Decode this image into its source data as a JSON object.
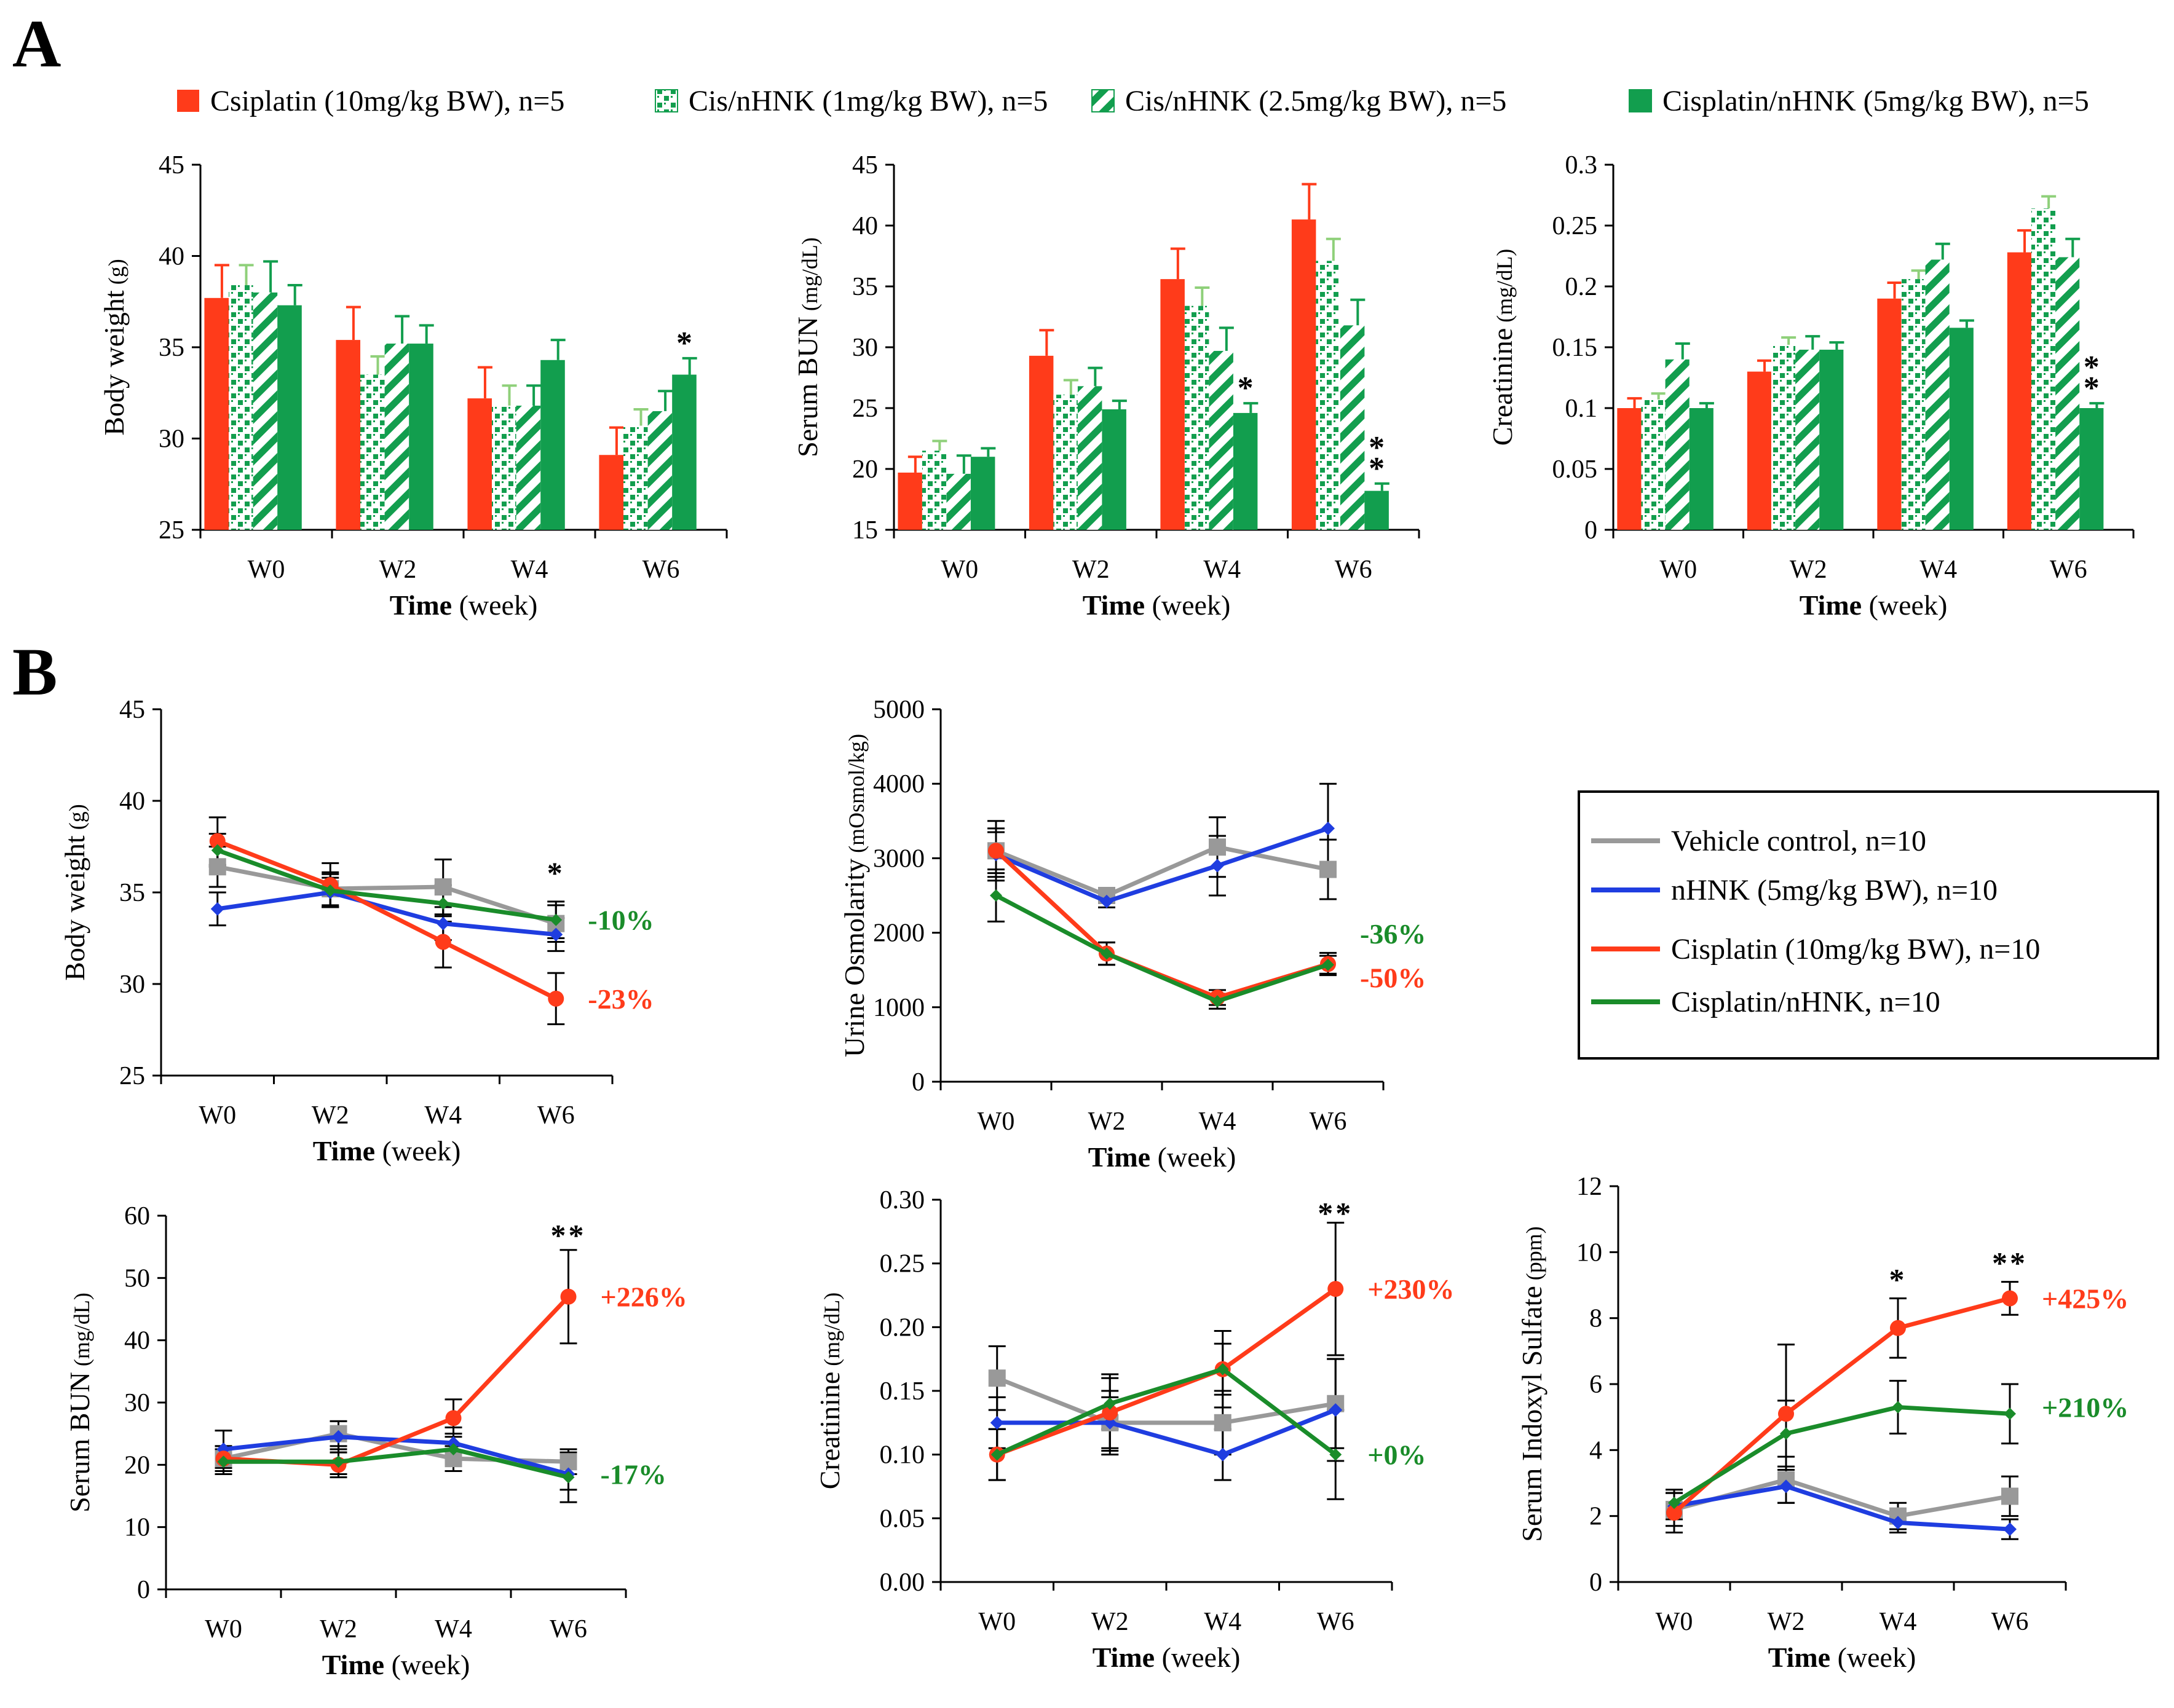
{
  "panel_labels": {
    "a": "A",
    "b": "B"
  },
  "legend_a": [
    {
      "label": "Csiplatin (10mg/kg BW), n=5",
      "pattern": "solid-red"
    },
    {
      "label": "Cis/nHNK (1mg/kg BW), n=5",
      "pattern": "dots-green"
    },
    {
      "label": "Cis/nHNK (2.5mg/kg BW), n=5",
      "pattern": "stripes-green"
    },
    {
      "label": "Cisplatin/nHNK (5mg/kg BW), n=5",
      "pattern": "solid-green"
    }
  ],
  "legend_b": [
    {
      "label": "Vehicle control, n=10",
      "color": "#999999"
    },
    {
      "label": "nHNK (5mg/kg BW), n=10",
      "color": "#1f3de0"
    },
    {
      "label": "Cisplatin (10mg/kg BW), n=10",
      "color": "#ff3b1a"
    },
    {
      "label": "Cisplatin/nHNK, n=10",
      "color": "#1a8c2a"
    }
  ],
  "colors": {
    "red": "#ff3b1a",
    "green": "#129e4e",
    "gray": "#999999",
    "blue": "#1f3de0",
    "dkgreen": "#1a8c2a"
  },
  "chart_data": [
    {
      "id": "A1",
      "type": "bar",
      "title": "",
      "xlabel_bold": "Time",
      "xlabel_rest": " (week)",
      "ylabel_main": "Body weight",
      "ylabel_unit": " (g)",
      "categories": [
        "W0",
        "W2",
        "W4",
        "W6"
      ],
      "ylim": [
        25,
        45
      ],
      "yticks": [
        "25",
        "30",
        "35",
        "40",
        "45"
      ],
      "ytick_values": [
        25,
        30,
        35,
        40,
        45
      ],
      "series": [
        {
          "name": "Csiplatin (10mg/kg BW), n=5",
          "values": [
            37.7,
            35.4,
            32.2,
            29.1
          ],
          "errors": [
            1.8,
            1.8,
            1.7,
            1.5
          ]
        },
        {
          "name": "Cis/nHNK (1mg/kg BW), n=5",
          "values": [
            38.4,
            33.5,
            31.8,
            30.7
          ],
          "errors": [
            1.1,
            1.0,
            1.1,
            0.9
          ]
        },
        {
          "name": "Cis/nHNK (2.5mg/kg BW), n=5",
          "values": [
            38.0,
            35.2,
            31.8,
            31.5
          ],
          "errors": [
            1.7,
            1.5,
            1.1,
            1.1
          ]
        },
        {
          "name": "Cisplatin/nHNK (5mg/kg BW), n=5",
          "values": [
            37.3,
            35.2,
            34.3,
            33.5
          ],
          "errors": [
            1.1,
            1.0,
            1.1,
            0.9
          ]
        }
      ],
      "annotations": [
        {
          "category": "W6",
          "series": 3,
          "text": "*"
        }
      ]
    },
    {
      "id": "A2",
      "type": "bar",
      "title": "",
      "xlabel_bold": "Time",
      "xlabel_rest": " (week)",
      "ylabel_main": "Serum BUN",
      "ylabel_unit": " (mg/dL)",
      "categories": [
        "W0",
        "W2",
        "W4",
        "W6"
      ],
      "ylim": [
        15,
        45
      ],
      "yticks": [
        "15",
        "20",
        "25",
        "30",
        "35",
        "40",
        "45"
      ],
      "ytick_values": [
        15,
        20,
        25,
        30,
        35,
        40,
        45
      ],
      "series": [
        {
          "name": "Csiplatin (10mg/kg BW), n=5",
          "values": [
            19.7,
            29.3,
            35.6,
            40.5
          ],
          "errors": [
            1.3,
            2.1,
            2.5,
            2.9
          ]
        },
        {
          "name": "Cis/nHNK (1mg/kg BW), n=5",
          "values": [
            21.5,
            26.1,
            33.4,
            37.1
          ],
          "errors": [
            0.8,
            1.2,
            1.5,
            1.8
          ]
        },
        {
          "name": "Cis/nHNK (2.5mg/kg BW), n=5",
          "values": [
            19.6,
            26.8,
            29.7,
            31.8
          ],
          "errors": [
            1.5,
            1.5,
            1.9,
            2.1
          ]
        },
        {
          "name": "Cisplatin/nHNK (5mg/kg BW), n=5",
          "values": [
            21.0,
            24.9,
            24.6,
            18.2
          ],
          "errors": [
            0.7,
            0.7,
            0.8,
            0.6
          ]
        }
      ],
      "annotations": [
        {
          "category": "W4",
          "series": 3,
          "text": "*"
        },
        {
          "category": "W6",
          "series": 3,
          "text": "**"
        }
      ]
    },
    {
      "id": "A3",
      "type": "bar",
      "title": "",
      "xlabel_bold": "Time",
      "xlabel_rest": " (week)",
      "ylabel_main": "Creatinine",
      "ylabel_unit": " (mg/dL)",
      "categories": [
        "W0",
        "W2",
        "W4",
        "W6"
      ],
      "ylim": [
        0,
        0.3
      ],
      "yticks": [
        "0",
        "0.05",
        "0.1",
        "0.15",
        "0.2",
        "0.25",
        "0.3"
      ],
      "ytick_values": [
        0,
        0.05,
        0.1,
        0.15,
        0.2,
        0.25,
        0.3
      ],
      "series": [
        {
          "name": "Csiplatin (10mg/kg BW), n=5",
          "values": [
            0.1,
            0.13,
            0.19,
            0.228
          ],
          "errors": [
            0.008,
            0.009,
            0.013,
            0.018
          ]
        },
        {
          "name": "Cis/nHNK (1mg/kg BW), n=5",
          "values": [
            0.107,
            0.152,
            0.206,
            0.264
          ],
          "errors": [
            0.005,
            0.006,
            0.007,
            0.01
          ]
        },
        {
          "name": "Cis/nHNK (2.5mg/kg BW), n=5",
          "values": [
            0.14,
            0.148,
            0.222,
            0.224
          ],
          "errors": [
            0.013,
            0.011,
            0.013,
            0.015
          ]
        },
        {
          "name": "Cisplatin/nHNK (5mg/kg BW), n=5",
          "values": [
            0.1,
            0.148,
            0.166,
            0.1
          ],
          "errors": [
            0.004,
            0.006,
            0.006,
            0.004
          ]
        }
      ],
      "annotations": [
        {
          "category": "W6",
          "series": 3,
          "text": "**"
        }
      ]
    },
    {
      "id": "B1",
      "type": "line",
      "title": "",
      "xlabel_bold": "Time",
      "xlabel_rest": " (week)",
      "ylabel_main": "Body weight",
      "ylabel_unit": " (g)",
      "x": [
        "W0",
        "W2",
        "W4",
        "W6"
      ],
      "ylim": [
        25,
        45
      ],
      "yticks": [
        "25",
        "30",
        "35",
        "40",
        "45"
      ],
      "ytick_values": [
        25,
        30,
        35,
        40,
        45
      ],
      "series": [
        {
          "name": "Vehicle control, n=10",
          "values": [
            36.4,
            35.2,
            35.3,
            33.3
          ],
          "errors": [
            1.1,
            0.9,
            1.5,
            1.0
          ],
          "marker": "square"
        },
        {
          "name": "nHNK (5mg/kg BW), n=10",
          "values": [
            34.1,
            35.0,
            33.3,
            32.7
          ],
          "errors": [
            0.9,
            0.8,
            0.9,
            0.9
          ],
          "marker": "diamond"
        },
        {
          "name": "Cisplatin (10mg/kg BW), n=10",
          "values": [
            37.8,
            35.4,
            32.3,
            29.2
          ],
          "errors": [
            1.3,
            1.2,
            1.4,
            1.4
          ],
          "marker": "circle"
        },
        {
          "name": "Cisplatin/nHNK, n=10",
          "values": [
            37.3,
            35.1,
            34.4,
            33.5
          ],
          "errors": [
            0.9,
            0.9,
            1.0,
            1.0
          ],
          "marker": "triangle"
        }
      ],
      "annotations": [
        {
          "x": "W6",
          "y": 36.1,
          "text": "*"
        }
      ],
      "side_labels": [
        {
          "text": "-10%",
          "y": 33.5,
          "color": "#1a8c2a"
        },
        {
          "text": "-23%",
          "y": 29.2,
          "color": "#ff3b1a"
        }
      ]
    },
    {
      "id": "B2",
      "type": "line",
      "title": "",
      "xlabel_bold": "Time",
      "xlabel_rest": " (week)",
      "ylabel_main": "Urine Osmolarity",
      "ylabel_unit": " (mOsmol/kg)",
      "x": [
        "W0",
        "W2",
        "W4",
        "W6"
      ],
      "ylim": [
        0,
        5000
      ],
      "yticks": [
        "0",
        "1000",
        "2000",
        "3000",
        "4000",
        "5000"
      ],
      "ytick_values": [
        0,
        1000,
        2000,
        3000,
        4000,
        5000
      ],
      "series": [
        {
          "name": "Vehicle control, n=10",
          "values": [
            3100,
            2500,
            3150,
            2850
          ],
          "errors": [
            400,
            100,
            400,
            400
          ],
          "marker": "square"
        },
        {
          "name": "nHNK (5mg/kg BW), n=10",
          "values": [
            3050,
            2420,
            2900,
            3400
          ],
          "errors": [
            300,
            80,
            400,
            600
          ],
          "marker": "diamond"
        },
        {
          "name": "Cisplatin (10mg/kg BW), n=10",
          "values": [
            3100,
            1720,
            1130,
            1580
          ],
          "errors": [
            300,
            150,
            100,
            150
          ],
          "marker": "circle"
        },
        {
          "name": "Cisplatin/nHNK, n=10",
          "values": [
            2500,
            1720,
            1080,
            1570
          ],
          "errors": [
            350,
            150,
            100,
            120
          ],
          "marker": "triangle"
        }
      ],
      "annotations": [],
      "side_labels": [
        {
          "text": "-36%",
          "y": 1990,
          "color": "#1a8c2a"
        },
        {
          "text": "-50%",
          "y": 1400,
          "color": "#ff3b1a"
        }
      ]
    },
    {
      "id": "B3",
      "type": "line",
      "title": "",
      "xlabel_bold": "Time",
      "xlabel_rest": " (week)",
      "ylabel_main": "Serum BUN",
      "ylabel_unit": " (mg/dL)",
      "x": [
        "W0",
        "W2",
        "W4",
        "W6"
      ],
      "ylim": [
        0,
        60
      ],
      "yticks": [
        "0",
        "10",
        "20",
        "30",
        "40",
        "50",
        "60"
      ],
      "ytick_values": [
        0,
        10,
        20,
        30,
        40,
        50,
        60
      ],
      "series": [
        {
          "name": "Vehicle control, n=10",
          "values": [
            21,
            25,
            21,
            20.5
          ],
          "errors": [
            2,
            2,
            2,
            2
          ],
          "marker": "square"
        },
        {
          "name": "nHNK (5mg/kg BW), n=10",
          "values": [
            22.5,
            24.5,
            23.5,
            18.5
          ],
          "errors": [
            3,
            2.5,
            2.5,
            2.5
          ],
          "marker": "diamond"
        },
        {
          "name": "Cisplatin (10mg/kg BW), n=10",
          "values": [
            21,
            20,
            27.5,
            47
          ],
          "errors": [
            2,
            2,
            3,
            7.5
          ],
          "marker": "circle"
        },
        {
          "name": "Cisplatin/nHNK, n=10",
          "values": [
            20.5,
            20.5,
            22.5,
            18
          ],
          "errors": [
            2,
            2,
            2.5,
            4
          ],
          "marker": "triangle"
        }
      ],
      "annotations": [
        {
          "x": "W6",
          "y": 57,
          "text": "**"
        }
      ],
      "side_labels": [
        {
          "text": "+226%",
          "y": 47,
          "color": "#ff3b1a"
        },
        {
          "text": "-17%",
          "y": 18.5,
          "color": "#1a8c2a"
        }
      ]
    },
    {
      "id": "B4",
      "type": "line",
      "title": "",
      "xlabel_bold": "Time",
      "xlabel_rest": " (week)",
      "ylabel_main": "Creatinine",
      "ylabel_unit": " (mg/dL)",
      "x": [
        "W0",
        "W2",
        "W4",
        "W6"
      ],
      "ylim": [
        0,
        0.3
      ],
      "yticks": [
        "0.00",
        "0.05",
        "0.10",
        "0.15",
        "0.20",
        "0.25",
        "0.30"
      ],
      "ytick_values": [
        0,
        0.05,
        0.1,
        0.15,
        0.2,
        0.25,
        0.3
      ],
      "series": [
        {
          "name": "Vehicle control, n=10",
          "values": [
            0.16,
            0.125,
            0.125,
            0.14
          ],
          "errors": [
            0.025,
            0.025,
            0.025,
            0.035
          ],
          "marker": "square"
        },
        {
          "name": "nHNK (5mg/kg BW), n=10",
          "values": [
            0.125,
            0.125,
            0.1,
            0.135
          ],
          "errors": [
            0.02,
            0.02,
            0.02,
            0.04
          ],
          "marker": "diamond"
        },
        {
          "name": "Cisplatin (10mg/kg BW), n=10",
          "values": [
            0.1,
            0.133,
            0.167,
            0.23
          ],
          "errors": [
            0.02,
            0.03,
            0.03,
            0.052
          ],
          "marker": "circle"
        },
        {
          "name": "Cisplatin/nHNK, n=10",
          "values": [
            0.1,
            0.14,
            0.167,
            0.1
          ],
          "errors": [
            0.02,
            0.02,
            0.02,
            0.035
          ],
          "marker": "triangle"
        }
      ],
      "annotations": [
        {
          "x": "W6",
          "y": 0.29,
          "text": "**"
        }
      ],
      "side_labels": [
        {
          "text": "+230%",
          "y": 0.23,
          "color": "#ff3b1a"
        },
        {
          "text": "+0%",
          "y": 0.1,
          "color": "#1a8c2a"
        }
      ]
    },
    {
      "id": "B5",
      "type": "line",
      "title": "",
      "xlabel_bold": "Time",
      "xlabel_rest": " (week)",
      "ylabel_main": "Serum Indoxyl Sulfate",
      "ylabel_unit": " (ppm)",
      "x": [
        "W0",
        "W2",
        "W4",
        "W6"
      ],
      "ylim": [
        0,
        12
      ],
      "yticks": [
        "0",
        "2",
        "4",
        "6",
        "8",
        "10",
        "12"
      ],
      "ytick_values": [
        0,
        2,
        4,
        6,
        8,
        10,
        12
      ],
      "series": [
        {
          "name": "Vehicle control, n=10",
          "values": [
            2.2,
            3.1,
            2.0,
            2.6
          ],
          "errors": [
            0.5,
            0.7,
            0.4,
            0.6
          ],
          "marker": "square"
        },
        {
          "name": "nHNK (5mg/kg BW), n=10",
          "values": [
            2.3,
            2.9,
            1.8,
            1.6
          ],
          "errors": [
            0.4,
            0.5,
            0.3,
            0.3
          ],
          "marker": "diamond"
        },
        {
          "name": "Cisplatin (10mg/kg BW), n=10",
          "values": [
            2.1,
            5.1,
            7.7,
            8.6
          ],
          "errors": [
            0.6,
            2.1,
            0.9,
            0.5
          ],
          "marker": "circle"
        },
        {
          "name": "Cisplatin/nHNK, n=10",
          "values": [
            2.4,
            4.5,
            5.3,
            5.1
          ],
          "errors": [
            0.4,
            1.0,
            0.8,
            0.9
          ],
          "marker": "triangle"
        }
      ],
      "annotations": [
        {
          "x": "W4",
          "y": 9.2,
          "text": "*"
        },
        {
          "x": "W6",
          "y": 9.7,
          "text": "**"
        }
      ],
      "side_labels": [
        {
          "text": "+425%",
          "y": 8.6,
          "color": "#ff3b1a"
        },
        {
          "text": "+210%",
          "y": 5.3,
          "color": "#1a8c2a"
        }
      ]
    }
  ]
}
